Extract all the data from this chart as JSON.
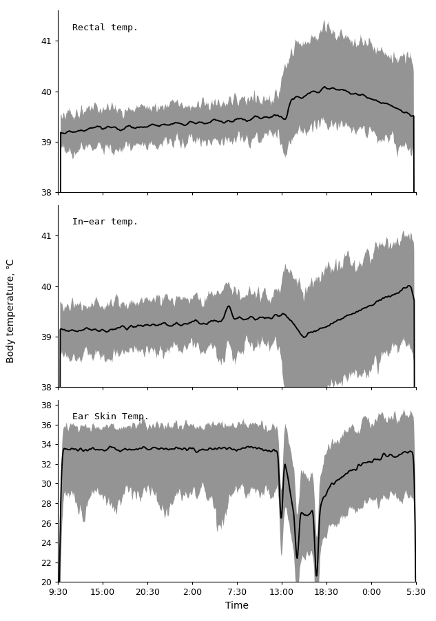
{
  "ylabel": "Body temperature, ℃",
  "xlabel": "Time",
  "x_tick_labels": [
    "9:30",
    "15:00",
    "20:30",
    "2:00",
    "7:30",
    "13:00",
    "18:30",
    "0:00",
    "5:30"
  ],
  "subplots": [
    {
      "label": "Rectal temp.",
      "ylim": [
        38.0,
        41.6
      ],
      "yticks": [
        38,
        39,
        40,
        41
      ],
      "mean_color": "#000000",
      "shade_color": "#888888"
    },
    {
      "label": "In−ear temp.",
      "ylim": [
        38.0,
        41.6
      ],
      "yticks": [
        38,
        39,
        40,
        41
      ],
      "mean_color": "#000000",
      "shade_color": "#888888"
    },
    {
      "label": "Ear Skin Temp.",
      "ylim": [
        20.0,
        38.5
      ],
      "yticks": [
        20,
        22,
        24,
        26,
        28,
        30,
        32,
        34,
        36,
        38
      ],
      "mean_color": "#000000",
      "shade_color": "#888888"
    }
  ],
  "n_points": 800,
  "background_color": "#ffffff",
  "seed": 7
}
